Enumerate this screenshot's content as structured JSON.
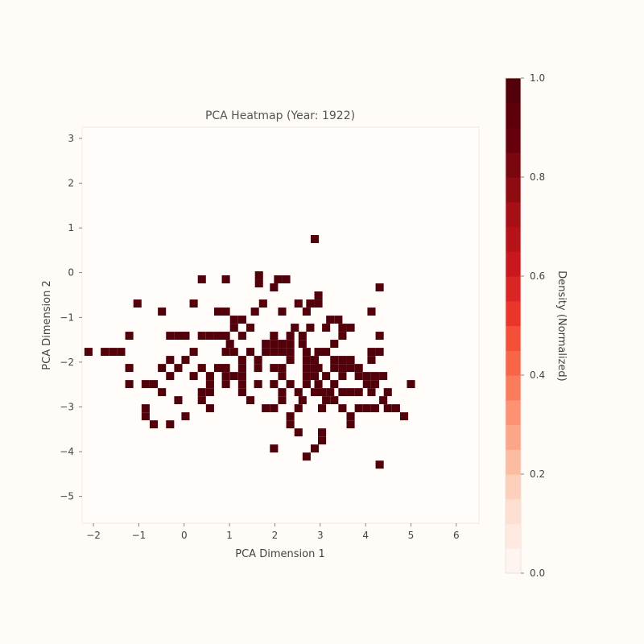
{
  "chart_data": {
    "type": "heatmap",
    "title": "PCA Heatmap (Year: 1922)",
    "xlabel": "PCA Dimension 1",
    "ylabel": "PCA Dimension 2",
    "xlim": [
      -2.25,
      6.5
    ],
    "ylim": [
      -5.6,
      3.25
    ],
    "xticks": [
      -2,
      -1,
      0,
      1,
      2,
      3,
      4,
      5,
      6
    ],
    "yticks": [
      -5,
      -4,
      -3,
      -2,
      -1,
      0,
      1,
      2,
      3
    ],
    "xtick_labels": [
      "−2",
      "−1",
      "0",
      "1",
      "2",
      "3",
      "4",
      "5",
      "6"
    ],
    "ytick_labels": [
      "−5",
      "−4",
      "−3",
      "−2",
      "−1",
      "0",
      "1",
      "2",
      "3"
    ],
    "grid": false,
    "colormap": "Reds",
    "colorbar": {
      "label": "Density (Normalized)",
      "range": [
        0.0,
        1.0
      ],
      "ticks": [
        0.0,
        0.2,
        0.4,
        0.6,
        0.8,
        1.0
      ],
      "tick_labels": [
        "0.0",
        "0.2",
        "0.4",
        "0.6",
        "0.8",
        "1.0"
      ],
      "levels": 20,
      "colors": [
        "#fff5f0",
        "#feeae0",
        "#fde0d2",
        "#fdd0bc",
        "#fcbca2",
        "#fca689",
        "#fc9272",
        "#fb7c5c",
        "#f96548",
        "#f44f39",
        "#ea362a",
        "#d92523",
        "#c8181d",
        "#b61319",
        "#a50f15",
        "#8e0b12",
        "#7a0610",
        "#67000d",
        "#5e000b",
        "#52000a"
      ]
    },
    "cell_size": [
      0.179,
      0.179
    ],
    "cell_value": 1.0,
    "cells": [
      [
        2.88,
        0.75
      ],
      [
        1.65,
        -0.06
      ],
      [
        1.65,
        -0.24
      ],
      [
        0.39,
        -0.15
      ],
      [
        0.92,
        -0.15
      ],
      [
        2.07,
        -0.15
      ],
      [
        2.25,
        -0.15
      ],
      [
        1.98,
        -0.33
      ],
      [
        4.31,
        -0.33
      ],
      [
        2.96,
        -0.51
      ],
      [
        -1.03,
        -0.69
      ],
      [
        0.21,
        -0.69
      ],
      [
        1.74,
        -0.69
      ],
      [
        2.52,
        -0.69
      ],
      [
        2.78,
        -0.69
      ],
      [
        2.96,
        -0.69
      ],
      [
        -0.49,
        -0.87
      ],
      [
        0.75,
        -0.87
      ],
      [
        0.92,
        -0.87
      ],
      [
        1.56,
        -0.87
      ],
      [
        2.16,
        -0.87
      ],
      [
        2.7,
        -0.87
      ],
      [
        4.13,
        -0.87
      ],
      [
        1.1,
        -1.05
      ],
      [
        1.28,
        -1.05
      ],
      [
        3.22,
        -1.05
      ],
      [
        3.4,
        -1.05
      ],
      [
        1.1,
        -1.23
      ],
      [
        1.46,
        -1.23
      ],
      [
        2.44,
        -1.23
      ],
      [
        2.78,
        -1.23
      ],
      [
        3.13,
        -1.23
      ],
      [
        3.49,
        -1.23
      ],
      [
        3.67,
        -1.23
      ],
      [
        -1.21,
        -1.41
      ],
      [
        -0.31,
        -1.41
      ],
      [
        -0.13,
        -1.41
      ],
      [
        0.03,
        -1.41
      ],
      [
        0.39,
        -1.41
      ],
      [
        0.57,
        -1.41
      ],
      [
        0.75,
        -1.41
      ],
      [
        0.92,
        -1.41
      ],
      [
        1.28,
        -1.41
      ],
      [
        1.98,
        -1.41
      ],
      [
        2.34,
        -1.41
      ],
      [
        2.61,
        -1.41
      ],
      [
        3.49,
        -1.41
      ],
      [
        4.31,
        -1.41
      ],
      [
        1.01,
        -1.59
      ],
      [
        1.8,
        -1.59
      ],
      [
        1.98,
        -1.59
      ],
      [
        2.16,
        -1.59
      ],
      [
        2.34,
        -1.59
      ],
      [
        2.61,
        -1.59
      ],
      [
        3.31,
        -1.59
      ],
      [
        -2.11,
        -1.77
      ],
      [
        -1.75,
        -1.77
      ],
      [
        -1.57,
        -1.77
      ],
      [
        -1.39,
        -1.77
      ],
      [
        0.21,
        -1.77
      ],
      [
        0.92,
        -1.77
      ],
      [
        1.1,
        -1.77
      ],
      [
        1.46,
        -1.77
      ],
      [
        1.8,
        -1.77
      ],
      [
        1.98,
        -1.77
      ],
      [
        2.16,
        -1.77
      ],
      [
        2.34,
        -1.77
      ],
      [
        2.7,
        -1.77
      ],
      [
        2.96,
        -1.77
      ],
      [
        3.13,
        -1.77
      ],
      [
        4.13,
        -1.77
      ],
      [
        4.31,
        -1.77
      ],
      [
        -0.31,
        -1.95
      ],
      [
        0.03,
        -1.95
      ],
      [
        1.28,
        -1.95
      ],
      [
        1.63,
        -1.95
      ],
      [
        2.34,
        -1.95
      ],
      [
        2.7,
        -1.95
      ],
      [
        2.88,
        -1.95
      ],
      [
        3.31,
        -1.95
      ],
      [
        3.49,
        -1.95
      ],
      [
        3.67,
        -1.95
      ],
      [
        4.13,
        -1.95
      ],
      [
        -1.21,
        -2.13
      ],
      [
        -0.49,
        -2.13
      ],
      [
        -0.13,
        -2.13
      ],
      [
        0.39,
        -2.13
      ],
      [
        0.75,
        -2.13
      ],
      [
        0.92,
        -2.13
      ],
      [
        1.28,
        -2.13
      ],
      [
        1.63,
        -2.13
      ],
      [
        1.98,
        -2.13
      ],
      [
        2.16,
        -2.13
      ],
      [
        2.7,
        -2.13
      ],
      [
        2.88,
        -2.13
      ],
      [
        2.96,
        -2.13
      ],
      [
        3.31,
        -2.13
      ],
      [
        3.49,
        -2.13
      ],
      [
        3.67,
        -2.13
      ],
      [
        3.85,
        -2.13
      ],
      [
        -0.31,
        -2.31
      ],
      [
        0.21,
        -2.31
      ],
      [
        0.57,
        -2.31
      ],
      [
        0.92,
        -2.31
      ],
      [
        1.1,
        -2.31
      ],
      [
        1.28,
        -2.31
      ],
      [
        2.16,
        -2.31
      ],
      [
        2.7,
        -2.31
      ],
      [
        2.88,
        -2.31
      ],
      [
        3.13,
        -2.31
      ],
      [
        3.49,
        -2.31
      ],
      [
        3.85,
        -2.31
      ],
      [
        4.03,
        -2.31
      ],
      [
        4.21,
        -2.31
      ],
      [
        4.39,
        -2.31
      ],
      [
        -1.21,
        -2.49
      ],
      [
        -0.85,
        -2.49
      ],
      [
        -0.67,
        -2.49
      ],
      [
        0.57,
        -2.49
      ],
      [
        0.92,
        -2.49
      ],
      [
        1.28,
        -2.49
      ],
      [
        1.63,
        -2.49
      ],
      [
        1.98,
        -2.49
      ],
      [
        2.34,
        -2.49
      ],
      [
        2.7,
        -2.49
      ],
      [
        2.96,
        -2.49
      ],
      [
        3.31,
        -2.49
      ],
      [
        4.03,
        -2.49
      ],
      [
        4.21,
        -2.49
      ],
      [
        5.0,
        -2.49
      ],
      [
        -0.49,
        -2.67
      ],
      [
        0.39,
        -2.67
      ],
      [
        0.57,
        -2.67
      ],
      [
        1.28,
        -2.67
      ],
      [
        2.16,
        -2.67
      ],
      [
        2.52,
        -2.67
      ],
      [
        2.88,
        -2.67
      ],
      [
        3.04,
        -2.67
      ],
      [
        3.22,
        -2.67
      ],
      [
        3.49,
        -2.67
      ],
      [
        3.67,
        -2.67
      ],
      [
        3.85,
        -2.67
      ],
      [
        4.13,
        -2.67
      ],
      [
        4.49,
        -2.67
      ],
      [
        -0.13,
        -2.85
      ],
      [
        0.39,
        -2.85
      ],
      [
        1.46,
        -2.85
      ],
      [
        2.16,
        -2.85
      ],
      [
        2.61,
        -2.85
      ],
      [
        3.13,
        -2.85
      ],
      [
        3.31,
        -2.85
      ],
      [
        4.39,
        -2.85
      ],
      [
        -0.85,
        -3.03
      ],
      [
        0.57,
        -3.03
      ],
      [
        1.8,
        -3.03
      ],
      [
        1.98,
        -3.03
      ],
      [
        2.52,
        -3.03
      ],
      [
        3.04,
        -3.03
      ],
      [
        3.49,
        -3.03
      ],
      [
        3.85,
        -3.03
      ],
      [
        4.03,
        -3.03
      ],
      [
        4.21,
        -3.03
      ],
      [
        4.49,
        -3.03
      ],
      [
        4.67,
        -3.03
      ],
      [
        -0.85,
        -3.21
      ],
      [
        0.03,
        -3.21
      ],
      [
        2.34,
        -3.21
      ],
      [
        3.67,
        -3.21
      ],
      [
        4.85,
        -3.21
      ],
      [
        -0.67,
        -3.39
      ],
      [
        -0.31,
        -3.39
      ],
      [
        2.34,
        -3.39
      ],
      [
        3.67,
        -3.39
      ],
      [
        2.52,
        -3.57
      ],
      [
        3.04,
        -3.57
      ],
      [
        3.04,
        -3.75
      ],
      [
        1.98,
        -3.93
      ],
      [
        2.88,
        -3.93
      ],
      [
        2.7,
        -4.11
      ],
      [
        4.31,
        -4.29
      ]
    ]
  }
}
